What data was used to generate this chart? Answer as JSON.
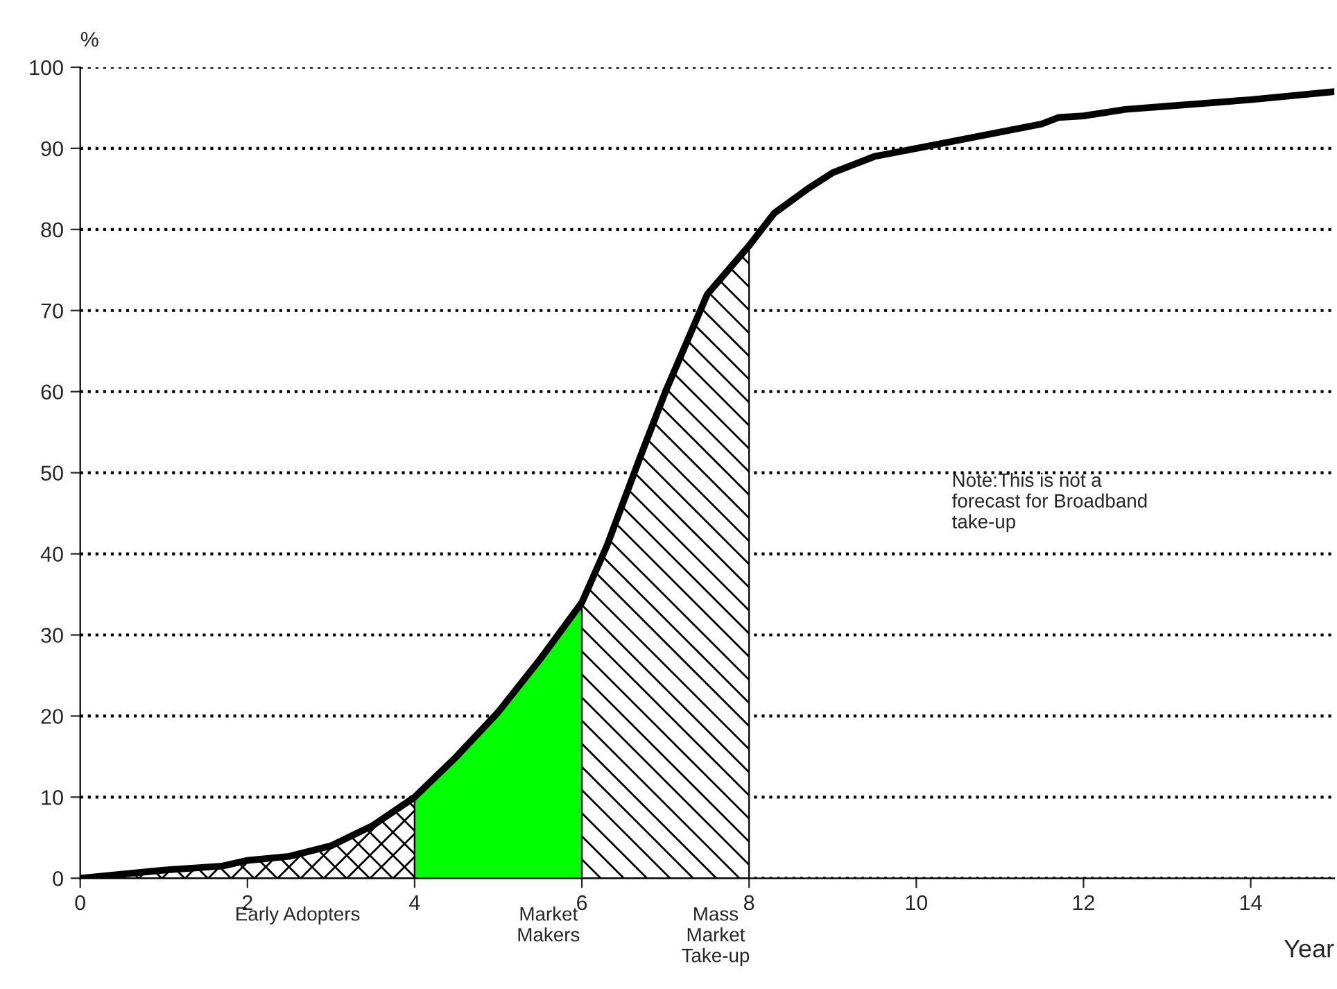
{
  "chart_data": {
    "type": "line",
    "ylabel": "%",
    "xlabel": "Year",
    "xlim": [
      0,
      15
    ],
    "xticks": [
      0,
      2,
      4,
      6,
      8,
      10,
      12,
      14
    ],
    "ylim": [
      0,
      100
    ],
    "yticks": [
      0,
      10,
      20,
      30,
      40,
      50,
      60,
      70,
      80,
      90,
      100
    ],
    "grid": "y",
    "line_style": "solid",
    "marker": "none",
    "legend": false,
    "series": [
      {
        "type": "area",
        "name": "Early Adopters",
        "color": "#000000",
        "x": [
          0,
          1,
          1.7,
          2,
          2.5,
          3,
          3.5,
          4
        ],
        "values": [
          0,
          1,
          1.5,
          2.2,
          2.7,
          4,
          6.5,
          10
        ]
      },
      {
        "type": "area",
        "name": "Market\nMakers",
        "color": "#00ff00",
        "x": [
          4,
          4.5,
          5,
          5.5,
          6
        ],
        "values": [
          10,
          15,
          20.5,
          27,
          34
        ]
      },
      {
        "type": "area",
        "name": "Mass\nMarket\nTake-up",
        "color": "#000000",
        "x": [
          6,
          6.3,
          6.7,
          7,
          7.5,
          8
        ],
        "values": [
          34,
          41,
          52,
          60,
          72,
          78
        ]
      },
      {
        "color": "#000000",
        "x": [
          0,
          1,
          1.7,
          2,
          2.5,
          3,
          3.5,
          4,
          4.5,
          5,
          5.5,
          6,
          6.3,
          6.7,
          7,
          7.5,
          8,
          8.3,
          8.7,
          9,
          9.5,
          10,
          10.5,
          11,
          11.5,
          11.7,
          12,
          12.5,
          13,
          14,
          15
        ],
        "values": [
          0,
          1,
          1.5,
          2.2,
          2.7,
          4,
          6.5,
          10,
          15,
          20.5,
          27,
          34,
          41,
          52,
          60,
          72,
          78,
          82,
          85,
          87,
          89,
          90,
          91,
          92,
          93,
          93.8,
          94,
          94.8,
          95.2,
          96,
          97
        ]
      }
    ],
    "annotations": [
      "Note:This is not a\nforecast for Broadband\ntake-up"
    ]
  }
}
